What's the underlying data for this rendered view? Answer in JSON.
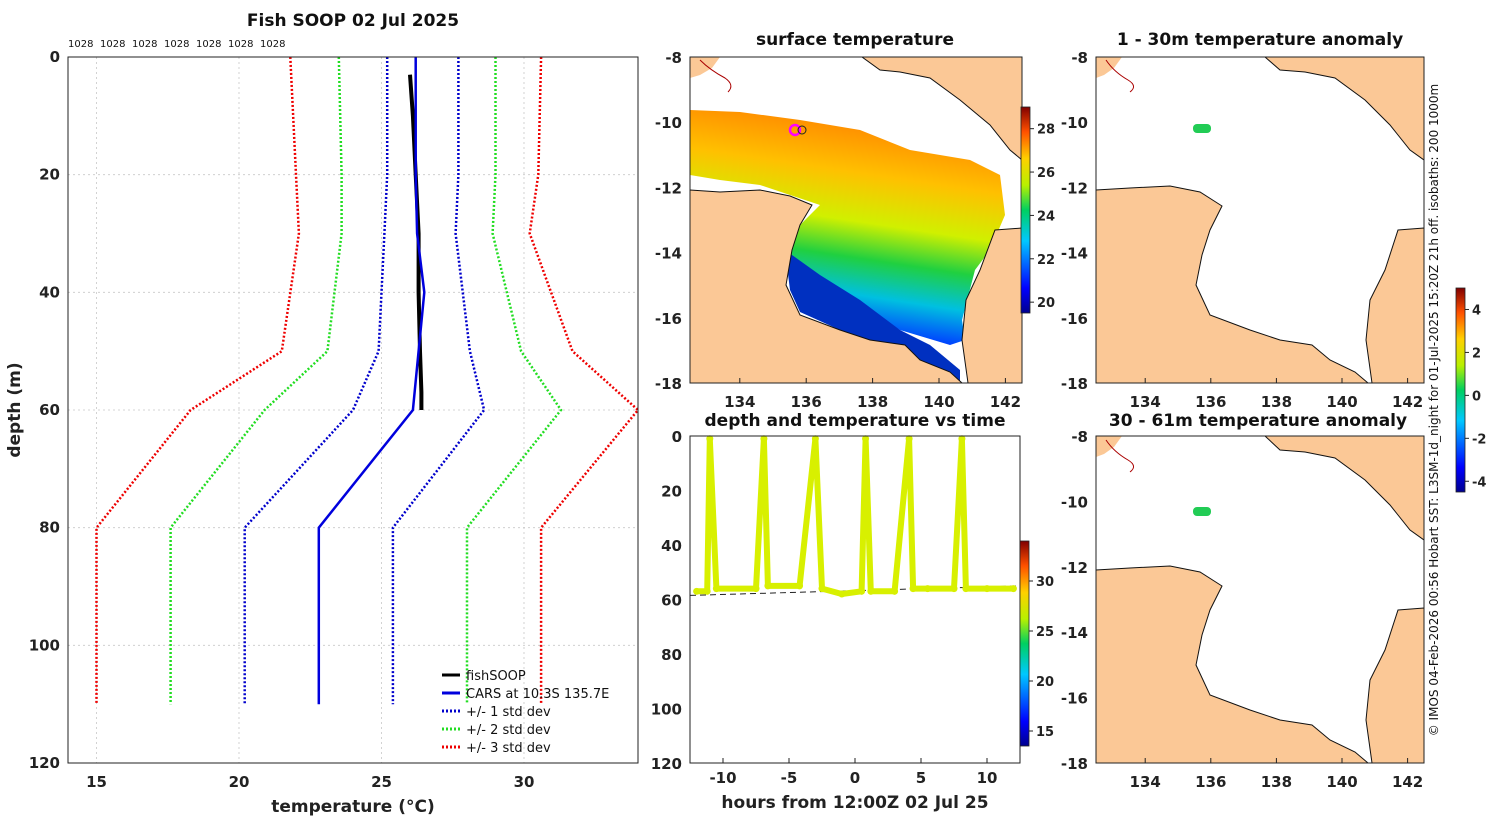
{
  "profile": {
    "title": "Fish SOOP 02 Jul 2025",
    "xlabel": "temperature (°C)",
    "ylabel": "depth (m)",
    "density_labels": [
      "1028",
      "1028",
      "1028",
      "1028",
      "1028",
      "1028",
      "1028"
    ],
    "legend": [
      "fishSOOP",
      "CARS at 10.3S 135.7E",
      "+/- 1 std dev",
      "+/- 2 std dev",
      "+/- 3 std dev"
    ]
  },
  "surface_map": {
    "title": "surface temperature"
  },
  "anomaly_top": {
    "title": "1 - 30m temperature anomaly"
  },
  "anomaly_bottom": {
    "title": "30 - 61m temperature anomaly"
  },
  "time_series": {
    "title": "depth and temperature vs time",
    "xlabel": "hours from 12:00Z 02 Jul 25"
  },
  "side_caption": "© IMOS 04-Feb-2026 00:56 Hobart SST: L3SM-1d_night for 01-Jul-2025 15:20Z 21h off. isobaths: 200  1000m",
  "colors": {
    "cars": "#0000dd",
    "std1": "#0000cc",
    "std2": "#22dd22",
    "std3": "#ee0000",
    "fish": "#000000",
    "land": "#fbc896",
    "series": "#d8f000"
  },
  "chart_data": [
    {
      "type": "line",
      "name": "temperature profile",
      "xlim": [
        14,
        34
      ],
      "ylim": [
        0,
        120
      ],
      "xticks": [
        15,
        20,
        25,
        30
      ],
      "yticks": [
        0,
        20,
        40,
        60,
        80,
        100,
        120
      ],
      "series": [
        {
          "name": "fishSOOP",
          "temp": [
            26.0,
            26.1,
            26.2,
            26.3,
            26.3,
            26.35,
            26.4,
            26.4
          ],
          "depth": [
            3,
            10,
            20,
            30,
            40,
            50,
            57,
            60
          ]
        },
        {
          "name": "CARS",
          "temp": [
            26.2,
            26.2,
            26.25,
            26.5,
            26.1,
            22.8,
            22.8
          ],
          "depth": [
            0,
            20,
            30,
            40,
            60,
            80,
            110
          ]
        },
        {
          "name": "-1 std",
          "temp": [
            25.2,
            25.2,
            25.1,
            24.9,
            24.0,
            20.2,
            20.2
          ],
          "depth": [
            0,
            20,
            30,
            50,
            60,
            80,
            110
          ]
        },
        {
          "name": "+1 std",
          "temp": [
            27.7,
            27.7,
            27.6,
            28.1,
            28.6,
            25.4,
            25.4
          ],
          "depth": [
            0,
            20,
            30,
            50,
            60,
            80,
            110
          ]
        },
        {
          "name": "-2 std",
          "temp": [
            23.5,
            23.6,
            23.6,
            23.1,
            20.9,
            17.6,
            17.6
          ],
          "depth": [
            0,
            20,
            30,
            50,
            60,
            80,
            110
          ]
        },
        {
          "name": "+2 std",
          "temp": [
            29.0,
            29.0,
            28.9,
            29.9,
            31.3,
            28.0,
            28.0
          ],
          "depth": [
            0,
            20,
            30,
            50,
            60,
            80,
            110
          ]
        },
        {
          "name": "-3 std",
          "temp": [
            21.8,
            22.0,
            22.1,
            21.5,
            18.3,
            15.0,
            15.0
          ],
          "depth": [
            0,
            20,
            30,
            50,
            60,
            80,
            110
          ]
        },
        {
          "name": "+3 std",
          "temp": [
            30.6,
            30.5,
            30.2,
            31.7,
            34.0,
            30.6,
            30.6
          ],
          "depth": [
            0,
            20,
            30,
            50,
            60,
            80,
            110
          ]
        }
      ]
    },
    {
      "type": "heatmap",
      "name": "surface temperature",
      "xlim": [
        132.5,
        142.5
      ],
      "ylim": [
        -18,
        -8
      ],
      "xticks": [
        134,
        136,
        138,
        140,
        142
      ],
      "yticks": [
        -8,
        -10,
        -12,
        -14,
        -16,
        -18
      ],
      "colorbar": {
        "range": [
          19.5,
          29
        ],
        "ticks": [
          20,
          22,
          24,
          26,
          28
        ]
      }
    },
    {
      "type": "scatter",
      "name": "depth and temperature vs time",
      "xlim": [
        -12.5,
        12.5
      ],
      "ylim": [
        0,
        120
      ],
      "xticks": [
        -10,
        -5,
        0,
        5,
        10
      ],
      "yticks": [
        0,
        20,
        40,
        60,
        80,
        100,
        120
      ],
      "colorbar": {
        "range": [
          13.5,
          34
        ],
        "ticks": [
          15,
          20,
          25,
          30
        ]
      },
      "hours": [
        -12,
        -11.2,
        -11.0,
        -10.5,
        -7.5,
        -6.9,
        -6.6,
        -4.2,
        -3.0,
        -2.5,
        -1.0,
        0.5,
        0.8,
        1.2,
        3.0,
        4.1,
        4.4,
        5.5,
        7.5,
        8.1,
        8.4,
        10.0,
        12.0
      ],
      "depth": [
        57,
        57,
        1,
        56,
        56,
        1,
        55,
        55,
        1,
        56,
        58,
        57,
        1,
        57,
        57,
        1,
        56,
        56,
        56,
        1,
        56,
        56,
        56
      ]
    },
    {
      "type": "heatmap",
      "name": "1 - 30m temperature anomaly",
      "xlim": [
        132.5,
        142.5
      ],
      "ylim": [
        -18,
        -8
      ],
      "xticks": [
        134,
        136,
        138,
        140,
        142
      ],
      "yticks": [
        -8,
        -10,
        -12,
        -14,
        -16,
        -18
      ],
      "colorbar": {
        "range": [
          -4.5,
          5
        ],
        "ticks": [
          -4,
          -2,
          0,
          2,
          4
        ]
      },
      "points": [
        {
          "lon": 135.7,
          "lat": -10.3,
          "anomaly": 0.3
        }
      ]
    },
    {
      "type": "heatmap",
      "name": "30 - 61m temperature anomaly",
      "xlim": [
        132.5,
        142.5
      ],
      "ylim": [
        -18,
        -8
      ],
      "xticks": [
        134,
        136,
        138,
        140,
        142
      ],
      "yticks": [
        -8,
        -10,
        -12,
        -14,
        -16,
        -18
      ],
      "points": [
        {
          "lon": 135.7,
          "lat": -10.3,
          "anomaly": 0.3
        }
      ]
    }
  ]
}
